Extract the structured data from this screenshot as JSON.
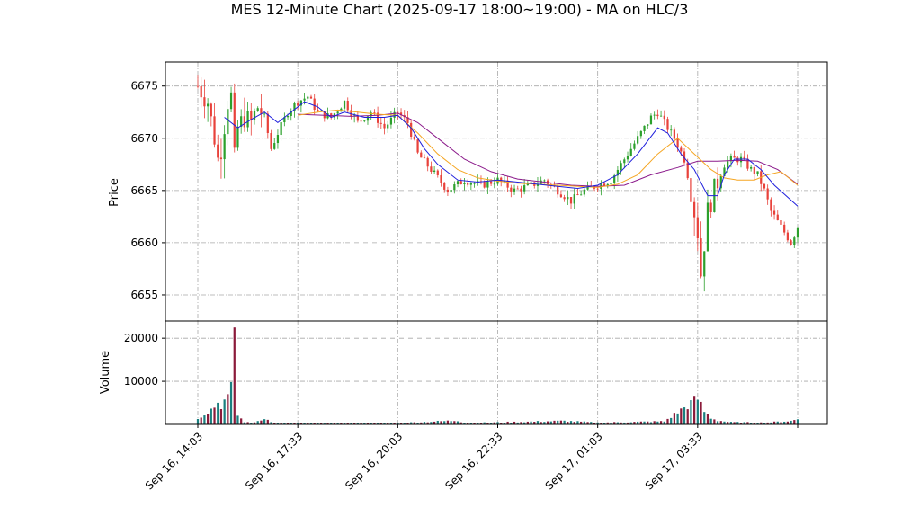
{
  "chart_data": {
    "type": "candlestick",
    "title": "MES 12-Minute Chart (2025-09-17 18:00~19:00) - MA on HLC/3",
    "price_panel": {
      "ylabel": "Price",
      "ylim": [
        6652.5,
        6677.3
      ],
      "yticks": [
        6655,
        6660,
        6665,
        6670,
        6675
      ],
      "grid": true
    },
    "volume_panel": {
      "ylabel": "Volume",
      "ylim": [
        0,
        24000
      ],
      "yticks": [
        10000,
        20000
      ],
      "grid": true
    },
    "x_axis": {
      "tick_labels": [
        "Sep 16, 14:03",
        "Sep 16, 17:33",
        "Sep 16, 20:03",
        "Sep 16, 22:33",
        "Sep 17, 01:03",
        "Sep 17, 03:33"
      ],
      "tick_positions_bar_index": [
        0,
        30,
        60,
        90,
        120,
        150
      ]
    },
    "colors": {
      "up": "#2ca02c",
      "down": "#e8423b",
      "ma_short": "#1f1fdc",
      "ma_mid": "#f5a623",
      "ma_long": "#8b1a8b",
      "volume_a": "#1a7f7f",
      "volume_b": "#8b1a3a"
    },
    "price_path": [
      [
        0,
        6675
      ],
      [
        3,
        6673.5
      ],
      [
        5,
        6670
      ],
      [
        6,
        6668
      ],
      [
        7,
        6669
      ],
      [
        9,
        6673.5
      ],
      [
        10,
        6674
      ],
      [
        11,
        6668
      ],
      [
        12,
        6671
      ],
      [
        14,
        6672
      ],
      [
        16,
        6671.5
      ],
      [
        18,
        6673
      ],
      [
        20,
        6672
      ],
      [
        22,
        6669
      ],
      [
        24,
        6670.5
      ],
      [
        27,
        6672.5
      ],
      [
        30,
        6673.5
      ],
      [
        33,
        6674
      ],
      [
        36,
        6672.5
      ],
      [
        40,
        6672
      ],
      [
        44,
        6673.5
      ],
      [
        48,
        6671.5
      ],
      [
        52,
        6672.5
      ],
      [
        56,
        6671
      ],
      [
        60,
        6672.5
      ],
      [
        63,
        6671.5
      ],
      [
        66,
        6668.5
      ],
      [
        70,
        6667
      ],
      [
        75,
        6665
      ],
      [
        80,
        6666
      ],
      [
        85,
        6665.5
      ],
      [
        90,
        6666
      ],
      [
        95,
        6665
      ],
      [
        100,
        6665.5
      ],
      [
        104,
        6666
      ],
      [
        108,
        6665
      ],
      [
        112,
        6664
      ],
      [
        116,
        6665
      ],
      [
        120,
        6665.5
      ],
      [
        124,
        6666
      ],
      [
        128,
        6668
      ],
      [
        132,
        6670
      ],
      [
        136,
        6672
      ],
      [
        138,
        6672.5
      ],
      [
        140,
        6671.5
      ],
      [
        143,
        6670
      ],
      [
        146,
        6668
      ],
      [
        148,
        6665
      ],
      [
        150,
        6661
      ],
      [
        151,
        6657
      ],
      [
        152,
        6660
      ],
      [
        153,
        6663
      ],
      [
        155,
        6665
      ],
      [
        158,
        6667.5
      ],
      [
        160,
        6668
      ],
      [
        163,
        6668
      ],
      [
        166,
        6667
      ],
      [
        168,
        6666.5
      ],
      [
        170,
        6665
      ],
      [
        172,
        6663
      ],
      [
        174,
        6662
      ],
      [
        176,
        6661
      ],
      [
        178,
        6660
      ],
      [
        180,
        6661.5
      ]
    ],
    "ma_short": [
      [
        8,
        6672
      ],
      [
        12,
        6671
      ],
      [
        16,
        6671.8
      ],
      [
        20,
        6672.5
      ],
      [
        24,
        6671.5
      ],
      [
        28,
        6672.5
      ],
      [
        32,
        6673.5
      ],
      [
        36,
        6673
      ],
      [
        40,
        6672
      ],
      [
        44,
        6672.5
      ],
      [
        50,
        6672
      ],
      [
        56,
        6672
      ],
      [
        60,
        6672.2
      ],
      [
        64,
        6671
      ],
      [
        68,
        6669
      ],
      [
        72,
        6667.5
      ],
      [
        78,
        6666
      ],
      [
        84,
        6665.8
      ],
      [
        90,
        6666
      ],
      [
        96,
        6665.8
      ],
      [
        102,
        6665.6
      ],
      [
        108,
        6665.4
      ],
      [
        114,
        6665.2
      ],
      [
        120,
        6665.5
      ],
      [
        126,
        6666.5
      ],
      [
        132,
        6668.5
      ],
      [
        138,
        6671
      ],
      [
        141,
        6670.5
      ],
      [
        145,
        6668.5
      ],
      [
        149,
        6667
      ],
      [
        153,
        6664.5
      ],
      [
        156,
        6664.5
      ],
      [
        158,
        6666.5
      ],
      [
        161,
        6668
      ],
      [
        165,
        6668
      ],
      [
        169,
        6667
      ],
      [
        173,
        6665.5
      ],
      [
        180,
        6663.5
      ]
    ],
    "ma_mid": [
      [
        30,
        6672.2
      ],
      [
        36,
        6672.5
      ],
      [
        42,
        6672.7
      ],
      [
        48,
        6672.5
      ],
      [
        54,
        6672.3
      ],
      [
        60,
        6672.2
      ],
      [
        66,
        6670.5
      ],
      [
        72,
        6668.5
      ],
      [
        78,
        6667
      ],
      [
        84,
        6666.2
      ],
      [
        90,
        6665.9
      ],
      [
        96,
        6665.7
      ],
      [
        102,
        6665.6
      ],
      [
        108,
        6665.5
      ],
      [
        114,
        6665.4
      ],
      [
        120,
        6665.3
      ],
      [
        126,
        6665.6
      ],
      [
        132,
        6666.5
      ],
      [
        138,
        6668.5
      ],
      [
        144,
        6670
      ],
      [
        149,
        6668.5
      ],
      [
        154,
        6667
      ],
      [
        158,
        6666.2
      ],
      [
        162,
        6666
      ],
      [
        167,
        6666
      ],
      [
        171,
        6666.5
      ],
      [
        175,
        6666.8
      ],
      [
        180,
        6665.5
      ]
    ],
    "ma_long": [
      [
        30,
        6672.3
      ],
      [
        38,
        6672.2
      ],
      [
        46,
        6672.1
      ],
      [
        54,
        6672.2
      ],
      [
        60,
        6672.4
      ],
      [
        66,
        6671.5
      ],
      [
        72,
        6670
      ],
      [
        80,
        6668
      ],
      [
        88,
        6666.8
      ],
      [
        96,
        6666.1
      ],
      [
        104,
        6665.8
      ],
      [
        112,
        6665.5
      ],
      [
        120,
        6665.4
      ],
      [
        128,
        6665.5
      ],
      [
        136,
        6666.5
      ],
      [
        144,
        6667.2
      ],
      [
        150,
        6667.8
      ],
      [
        156,
        6667.8
      ],
      [
        162,
        6667.9
      ],
      [
        168,
        6667.8
      ],
      [
        174,
        6667
      ],
      [
        180,
        6665.6
      ]
    ],
    "volume_path": [
      [
        0,
        1500
      ],
      [
        2,
        2500
      ],
      [
        4,
        3500
      ],
      [
        6,
        5000
      ],
      [
        7,
        4500
      ],
      [
        8,
        5500
      ],
      [
        9,
        6000
      ],
      [
        10,
        8000
      ],
      [
        10.5,
        7000
      ],
      [
        11,
        22500
      ],
      [
        12,
        2000
      ],
      [
        14,
        600
      ],
      [
        16,
        300
      ],
      [
        18,
        800
      ],
      [
        20,
        1500
      ],
      [
        22,
        500
      ],
      [
        24,
        300
      ],
      [
        40,
        250
      ],
      [
        60,
        300
      ],
      [
        78,
        900
      ],
      [
        80,
        300
      ],
      [
        110,
        800
      ],
      [
        120,
        400
      ],
      [
        140,
        700
      ],
      [
        150,
        6000
      ],
      [
        152,
        3000
      ],
      [
        154,
        1500
      ],
      [
        156,
        900
      ],
      [
        160,
        500
      ],
      [
        170,
        400
      ],
      [
        178,
        800
      ],
      [
        180,
        1200
      ]
    ]
  }
}
